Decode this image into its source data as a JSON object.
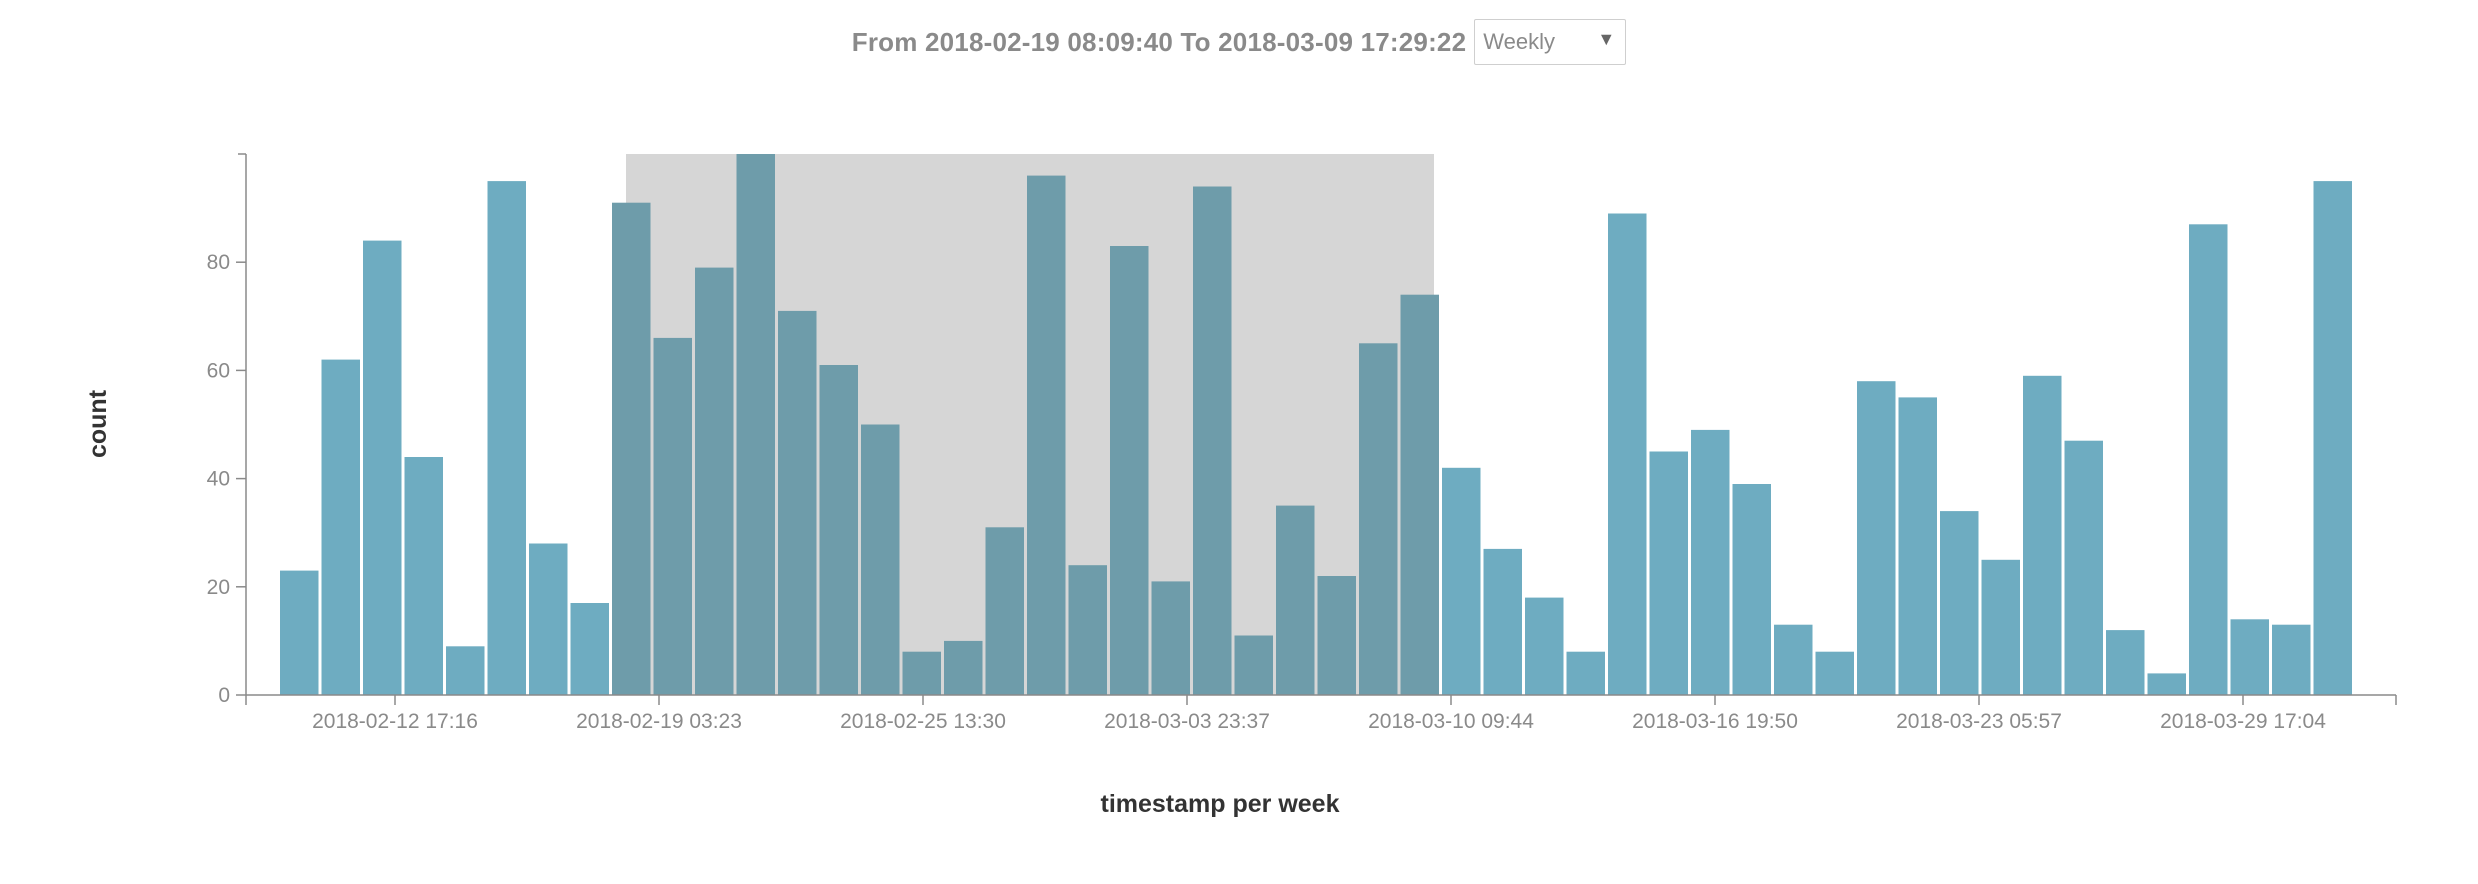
{
  "header": {
    "range_text": "From 2018-02-19 08:09:40 To 2018-03-09 17:29:22",
    "interval_select": {
      "value": "Weekly",
      "arrow_icon": "triangle-down-icon"
    }
  },
  "colors": {
    "bar": "#6eacc1",
    "bar_selected": "#6e9caa",
    "selection_fill": "#d6d6d6",
    "axis": "#8a8a8a"
  },
  "chart_data": {
    "type": "bar",
    "xlabel": "timestamp per week",
    "ylabel": "count",
    "ylim": [
      0,
      100
    ],
    "yticks": [
      0,
      20,
      40,
      60,
      80
    ],
    "x_tick_labels": [
      "2018-02-12 17:16",
      "2018-02-19 03:23",
      "2018-02-25 13:30",
      "2018-03-03 23:37",
      "2018-03-10 09:44",
      "2018-03-16 19:50",
      "2018-03-23 05:57",
      "2018-03-29 17:04"
    ],
    "values": [
      23,
      62,
      84,
      44,
      9,
      95,
      28,
      17,
      91,
      66,
      79,
      100,
      71,
      61,
      50,
      8,
      10,
      31,
      96,
      24,
      83,
      21,
      94,
      11,
      35,
      22,
      65,
      74,
      42,
      27,
      18,
      8,
      89,
      45,
      49,
      39,
      13,
      8,
      58,
      55,
      34,
      25,
      59,
      47,
      12,
      4,
      87,
      14,
      13,
      95
    ],
    "selected_range": {
      "from": "2018-02-19 08:09:40",
      "to": "2018-03-09 17:29:22",
      "first_bar": 8,
      "last_bar": 27
    },
    "grid": false,
    "legend": "none"
  }
}
